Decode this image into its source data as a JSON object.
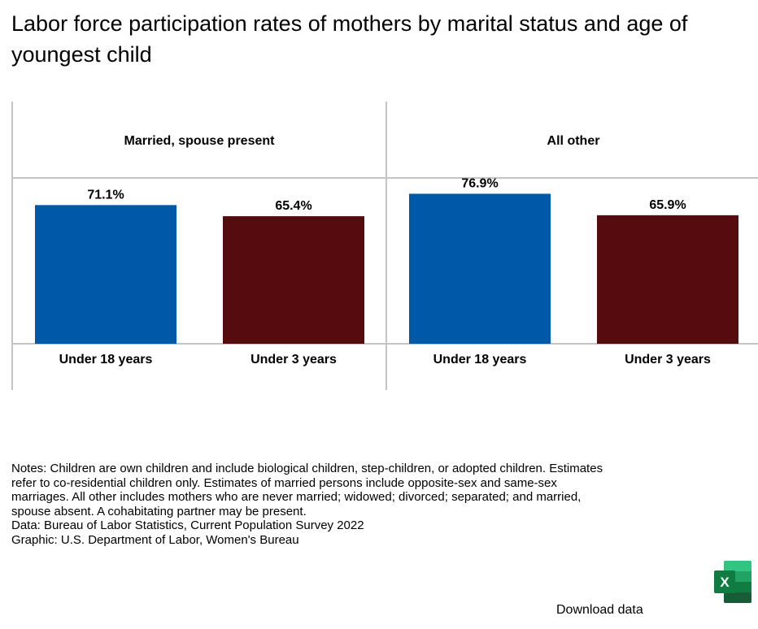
{
  "title": "Labor force participation rates of mothers by marital status and age of youngest child",
  "chart_data": {
    "type": "bar",
    "title": "Labor force participation rates of mothers by marital status and age of youngest child",
    "ylim": [
      0,
      85
    ],
    "unit": "%",
    "panels": [
      {
        "name": "Married, spouse present",
        "categories": [
          "Under 18 years",
          "Under 3 years"
        ],
        "values": [
          71.1,
          65.4
        ],
        "labels": [
          "71.1%",
          "65.4%"
        ]
      },
      {
        "name": "All other",
        "categories": [
          "Under 18 years",
          "Under 3 years"
        ],
        "values": [
          76.9,
          65.9
        ],
        "labels": [
          "76.9%",
          "65.9%"
        ]
      }
    ],
    "colors": [
      "#0059A8",
      "#560B0F"
    ]
  },
  "notes": {
    "lines": [
      "Notes: Children are own children and include biological children, step-children, or adopted children. Estimates",
      "refer to co-residential children only. Estimates of married persons include opposite-sex and same-sex",
      "marriages. All other includes mothers who are never married; widowed; divorced; separated; and married,",
      "spouse absent. A cohabitating partner may be present."
    ],
    "data_source": "Data: Bureau of Labor Statistics, Current Population Survey 2022",
    "graphic_credit": "Graphic: U.S. Department of Labor, Women's Bureau"
  },
  "download": {
    "label": "Download data",
    "icon": "excel-icon",
    "icon_letter": "X",
    "icon_color": "#1D6F42"
  }
}
